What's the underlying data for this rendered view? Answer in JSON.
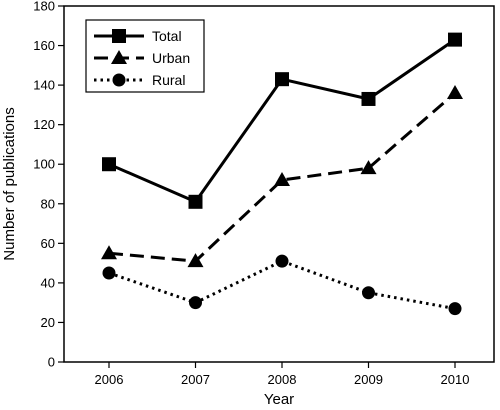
{
  "chart_data": {
    "type": "line",
    "title": "",
    "xlabel": "Year",
    "ylabel": "Number of publications",
    "categories": [
      "2006",
      "2007",
      "2008",
      "2009",
      "2010"
    ],
    "ylim": [
      0,
      180
    ],
    "yticks": [
      0,
      20,
      40,
      60,
      80,
      100,
      120,
      140,
      160,
      180
    ],
    "grid": false,
    "legend_position": "top-left",
    "series": [
      {
        "name": "Total",
        "values": [
          100,
          81,
          143,
          133,
          163
        ],
        "line_style": "solid",
        "marker": "square",
        "color": "#000000"
      },
      {
        "name": "Urban",
        "values": [
          55,
          51,
          92,
          98,
          136
        ],
        "line_style": "dashed",
        "marker": "triangle",
        "color": "#000000"
      },
      {
        "name": "Rural",
        "values": [
          45,
          30,
          51,
          35,
          27
        ],
        "line_style": "dotted",
        "marker": "circle",
        "color": "#000000"
      }
    ]
  }
}
